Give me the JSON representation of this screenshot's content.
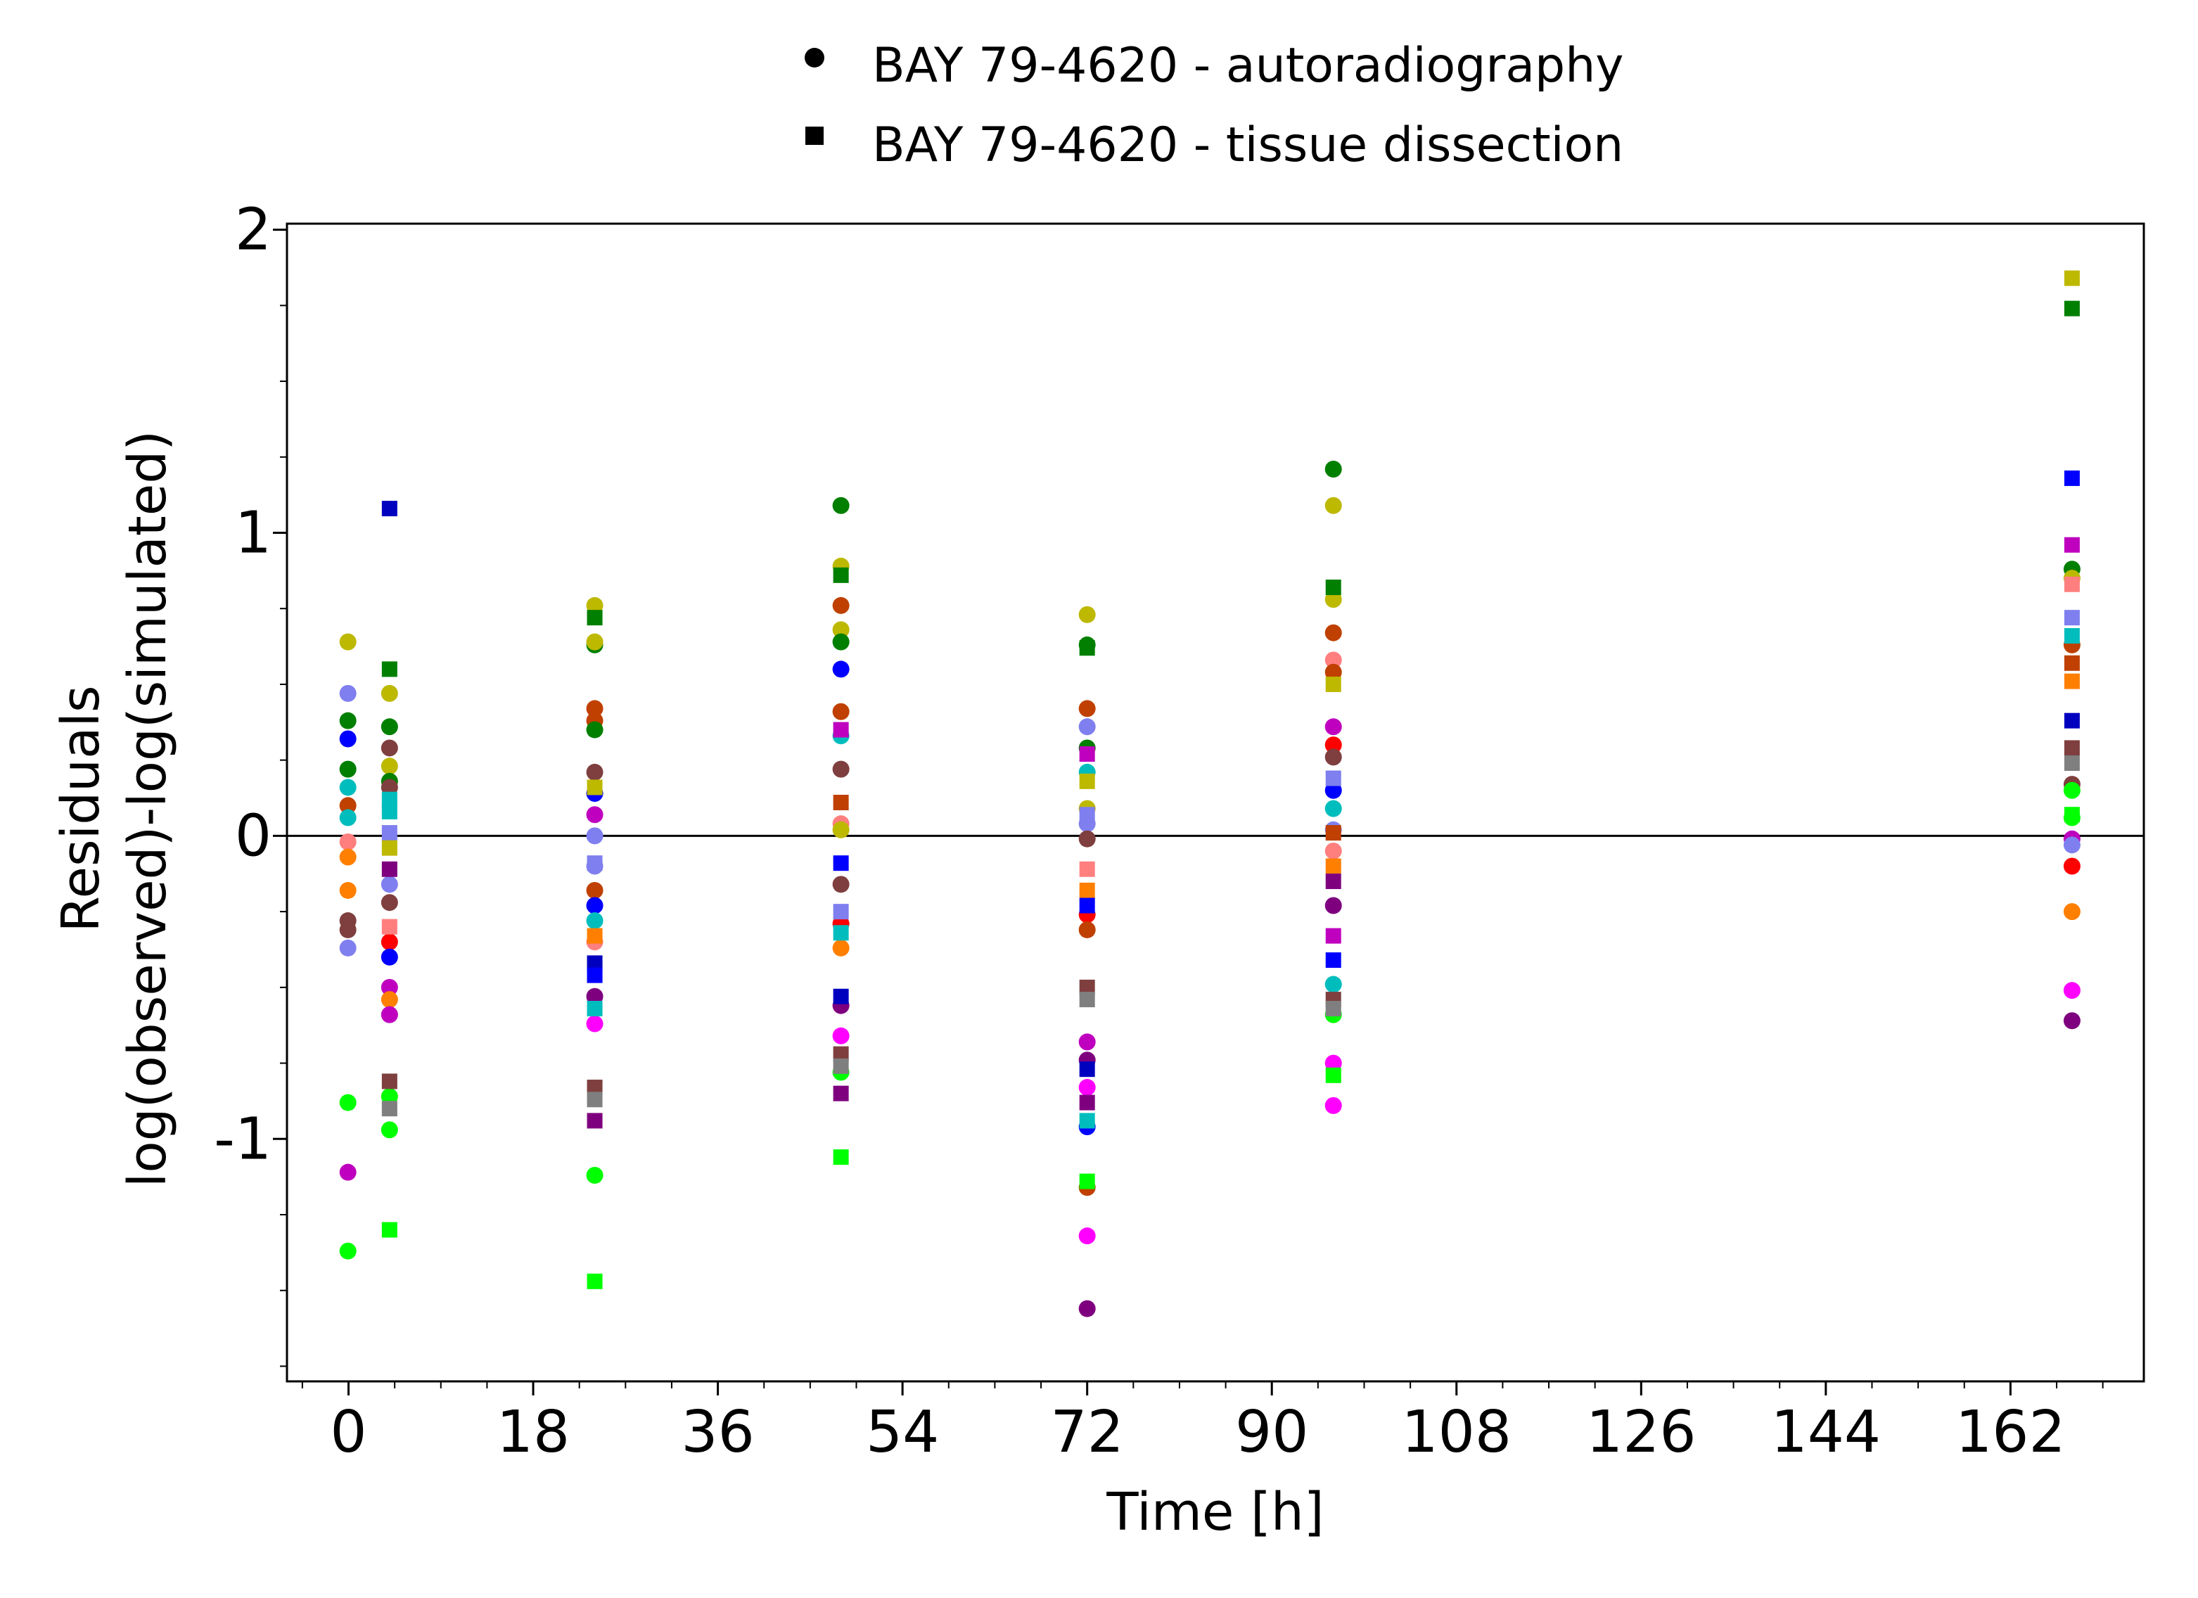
{
  "chart_data": {
    "type": "scatter",
    "title": "",
    "xlabel": "Time [h]",
    "ylabel_lines": [
      "Residuals",
      "log(observed)-log(simulated)"
    ],
    "xlim": [
      -6,
      175
    ],
    "ylim": [
      -1.8,
      2.02
    ],
    "x_ticks": [
      0,
      18,
      36,
      54,
      72,
      90,
      108,
      126,
      144,
      162
    ],
    "x_minor_step": 4.5,
    "y_ticks": [
      -1,
      0,
      1,
      2
    ],
    "y_minor_step": 0.25,
    "zero_line": 0,
    "grid": false,
    "legend_position": "top-center",
    "series": [
      {
        "name": "BAY 79-4620 - autoradiography",
        "marker": "circle",
        "points": [
          {
            "x": 2,
            "y": 0.64,
            "c": "#bdb800"
          },
          {
            "x": 2,
            "y": 0.47,
            "c": "#7f7fef"
          },
          {
            "x": 2,
            "y": 0.38,
            "c": "#007f00"
          },
          {
            "x": 2,
            "y": 0.32,
            "c": "#0000ff"
          },
          {
            "x": 2,
            "y": 0.22,
            "c": "#007f00"
          },
          {
            "x": 2,
            "y": 0.16,
            "c": "#00bdbd"
          },
          {
            "x": 2,
            "y": 0.1,
            "c": "#bf4000"
          },
          {
            "x": 2,
            "y": 0.06,
            "c": "#00bdbd"
          },
          {
            "x": 2,
            "y": -0.02,
            "c": "#ff7f7f"
          },
          {
            "x": 2,
            "y": -0.07,
            "c": "#ff7f00"
          },
          {
            "x": 2,
            "y": -0.18,
            "c": "#ff7f00"
          },
          {
            "x": 2,
            "y": -0.28,
            "c": "#7f3f3f"
          },
          {
            "x": 2,
            "y": -0.31,
            "c": "#7f3f3f"
          },
          {
            "x": 2,
            "y": -0.37,
            "c": "#7f7fef"
          },
          {
            "x": 2,
            "y": -0.88,
            "c": "#00ff00"
          },
          {
            "x": 2,
            "y": -1.11,
            "c": "#bf00bf"
          },
          {
            "x": 2,
            "y": -1.37,
            "c": "#00ff00"
          },
          {
            "x": 4,
            "y": 0.47,
            "c": "#bdb800"
          },
          {
            "x": 4,
            "y": 0.36,
            "c": "#007f00"
          },
          {
            "x": 4,
            "y": 0.29,
            "c": "#7f3f3f"
          },
          {
            "x": 4,
            "y": 0.23,
            "c": "#bdb800"
          },
          {
            "x": 4,
            "y": 0.18,
            "c": "#007f00"
          },
          {
            "x": 4,
            "y": 0.16,
            "c": "#7f3f3f"
          },
          {
            "x": 4,
            "y": -0.16,
            "c": "#7f7fef"
          },
          {
            "x": 4,
            "y": -0.22,
            "c": "#7f3f3f"
          },
          {
            "x": 4,
            "y": -0.35,
            "c": "#ff0000"
          },
          {
            "x": 4,
            "y": -0.4,
            "c": "#0000ff"
          },
          {
            "x": 4,
            "y": -0.5,
            "c": "#bf00bf"
          },
          {
            "x": 4,
            "y": -0.54,
            "c": "#ff7f00"
          },
          {
            "x": 4,
            "y": -0.59,
            "c": "#bf00bf"
          },
          {
            "x": 4,
            "y": -0.86,
            "c": "#00ff00"
          },
          {
            "x": 4,
            "y": -0.97,
            "c": "#00ff00"
          },
          {
            "x": 24,
            "y": 0.76,
            "c": "#bdb800"
          },
          {
            "x": 24,
            "y": 0.63,
            "c": "#007f00"
          },
          {
            "x": 24,
            "y": 0.64,
            "c": "#bdb800"
          },
          {
            "x": 24,
            "y": 0.42,
            "c": "#bf4000"
          },
          {
            "x": 24,
            "y": 0.38,
            "c": "#bf4000"
          },
          {
            "x": 24,
            "y": 0.35,
            "c": "#007f00"
          },
          {
            "x": 24,
            "y": 0.21,
            "c": "#7f3f3f"
          },
          {
            "x": 24,
            "y": 0.14,
            "c": "#0000ff"
          },
          {
            "x": 24,
            "y": 0.07,
            "c": "#bf00bf"
          },
          {
            "x": 24,
            "y": 0.0,
            "c": "#7f7fef"
          },
          {
            "x": 24,
            "y": -0.1,
            "c": "#7f7fef"
          },
          {
            "x": 24,
            "y": -0.18,
            "c": "#bf4000"
          },
          {
            "x": 24,
            "y": -0.23,
            "c": "#0000ff"
          },
          {
            "x": 24,
            "y": -0.28,
            "c": "#00bdbd"
          },
          {
            "x": 24,
            "y": -0.35,
            "c": "#ff7f7f"
          },
          {
            "x": 24,
            "y": -0.53,
            "c": "#7f007f"
          },
          {
            "x": 24,
            "y": -0.62,
            "c": "#ff00ff"
          },
          {
            "x": 24,
            "y": -1.12,
            "c": "#00ff00"
          },
          {
            "x": 48,
            "y": 1.09,
            "c": "#007f00"
          },
          {
            "x": 48,
            "y": 0.89,
            "c": "#bdb800"
          },
          {
            "x": 48,
            "y": 0.76,
            "c": "#bf4000"
          },
          {
            "x": 48,
            "y": 0.68,
            "c": "#bdb800"
          },
          {
            "x": 48,
            "y": 0.64,
            "c": "#007f00"
          },
          {
            "x": 48,
            "y": 0.55,
            "c": "#0000ff"
          },
          {
            "x": 48,
            "y": 0.41,
            "c": "#bf4000"
          },
          {
            "x": 48,
            "y": 0.33,
            "c": "#00bdbd"
          },
          {
            "x": 48,
            "y": 0.22,
            "c": "#7f3f3f"
          },
          {
            "x": 48,
            "y": 0.04,
            "c": "#ff7f7f"
          },
          {
            "x": 48,
            "y": 0.02,
            "c": "#bdb800"
          },
          {
            "x": 48,
            "y": -0.16,
            "c": "#7f3f3f"
          },
          {
            "x": 48,
            "y": -0.29,
            "c": "#ff0000"
          },
          {
            "x": 48,
            "y": -0.37,
            "c": "#ff7f00"
          },
          {
            "x": 48,
            "y": -0.56,
            "c": "#7f007f"
          },
          {
            "x": 48,
            "y": -0.66,
            "c": "#ff00ff"
          },
          {
            "x": 48,
            "y": -0.78,
            "c": "#00ff00"
          },
          {
            "x": 72,
            "y": 0.73,
            "c": "#bdb800"
          },
          {
            "x": 72,
            "y": 0.63,
            "c": "#007f00"
          },
          {
            "x": 72,
            "y": 0.42,
            "c": "#bf4000"
          },
          {
            "x": 72,
            "y": 0.36,
            "c": "#7f7fef"
          },
          {
            "x": 72,
            "y": 0.29,
            "c": "#007f00"
          },
          {
            "x": 72,
            "y": 0.21,
            "c": "#00bdbd"
          },
          {
            "x": 72,
            "y": 0.09,
            "c": "#bdb800"
          },
          {
            "x": 72,
            "y": 0.04,
            "c": "#7f7fef"
          },
          {
            "x": 72,
            "y": -0.01,
            "c": "#7f3f3f"
          },
          {
            "x": 72,
            "y": -0.26,
            "c": "#ff0000"
          },
          {
            "x": 72,
            "y": -0.31,
            "c": "#bf4000"
          },
          {
            "x": 72,
            "y": -0.68,
            "c": "#bf00bf"
          },
          {
            "x": 72,
            "y": -0.74,
            "c": "#7f007f"
          },
          {
            "x": 72,
            "y": -0.83,
            "c": "#ff00ff"
          },
          {
            "x": 72,
            "y": -0.96,
            "c": "#0000ff"
          },
          {
            "x": 72,
            "y": -1.16,
            "c": "#bf4000"
          },
          {
            "x": 72,
            "y": -1.32,
            "c": "#ff00ff"
          },
          {
            "x": 72,
            "y": -1.56,
            "c": "#7f007f"
          },
          {
            "x": 96,
            "y": 1.21,
            "c": "#007f00"
          },
          {
            "x": 96,
            "y": 1.09,
            "c": "#bdb800"
          },
          {
            "x": 96,
            "y": 0.78,
            "c": "#bdb800"
          },
          {
            "x": 96,
            "y": 0.67,
            "c": "#bf4000"
          },
          {
            "x": 96,
            "y": 0.58,
            "c": "#ff7f7f"
          },
          {
            "x": 96,
            "y": 0.54,
            "c": "#bf4000"
          },
          {
            "x": 96,
            "y": 0.36,
            "c": "#bf00bf"
          },
          {
            "x": 96,
            "y": 0.3,
            "c": "#ff0000"
          },
          {
            "x": 96,
            "y": 0.26,
            "c": "#7f3f3f"
          },
          {
            "x": 96,
            "y": 0.15,
            "c": "#0000ff"
          },
          {
            "x": 96,
            "y": 0.09,
            "c": "#00bdbd"
          },
          {
            "x": 96,
            "y": 0.02,
            "c": "#7f7fef"
          },
          {
            "x": 96,
            "y": -0.05,
            "c": "#ff7f7f"
          },
          {
            "x": 96,
            "y": -0.23,
            "c": "#7f007f"
          },
          {
            "x": 96,
            "y": -0.49,
            "c": "#00bdbd"
          },
          {
            "x": 96,
            "y": -0.59,
            "c": "#00ff00"
          },
          {
            "x": 96,
            "y": -0.75,
            "c": "#ff00ff"
          },
          {
            "x": 96,
            "y": -0.89,
            "c": "#ff00ff"
          },
          {
            "x": 168,
            "y": 0.88,
            "c": "#007f00"
          },
          {
            "x": 168,
            "y": 0.85,
            "c": "#bdb800"
          },
          {
            "x": 168,
            "y": 0.63,
            "c": "#bf4000"
          },
          {
            "x": 168,
            "y": 0.17,
            "c": "#7f3f3f"
          },
          {
            "x": 168,
            "y": 0.15,
            "c": "#00ff00"
          },
          {
            "x": 168,
            "y": 0.06,
            "c": "#00ff00"
          },
          {
            "x": 168,
            "y": -0.01,
            "c": "#bf00bf"
          },
          {
            "x": 168,
            "y": -0.03,
            "c": "#7f7fef"
          },
          {
            "x": 168,
            "y": -0.1,
            "c": "#ff0000"
          },
          {
            "x": 168,
            "y": -0.25,
            "c": "#ff7f00"
          },
          {
            "x": 168,
            "y": -0.51,
            "c": "#ff00ff"
          },
          {
            "x": 168,
            "y": -0.61,
            "c": "#7f007f"
          }
        ]
      },
      {
        "name": "BAY 79-4620 - tissue dissection",
        "marker": "square",
        "points": [
          {
            "x": 4,
            "y": 1.08,
            "c": "#0000bf"
          },
          {
            "x": 4,
            "y": 0.55,
            "c": "#007f00"
          },
          {
            "x": 4,
            "y": 0.12,
            "c": "#00bdbd"
          },
          {
            "x": 4,
            "y": 0.08,
            "c": "#00bdbd"
          },
          {
            "x": 4,
            "y": 0.01,
            "c": "#7f7fef"
          },
          {
            "x": 4,
            "y": -0.04,
            "c": "#bdb800"
          },
          {
            "x": 4,
            "y": -0.11,
            "c": "#7f007f"
          },
          {
            "x": 4,
            "y": -0.3,
            "c": "#ff7f7f"
          },
          {
            "x": 4,
            "y": -0.81,
            "c": "#7f3f3f"
          },
          {
            "x": 4,
            "y": -0.9,
            "c": "#7f7f7f"
          },
          {
            "x": 4,
            "y": -1.3,
            "c": "#00ff00"
          },
          {
            "x": 24,
            "y": 0.72,
            "c": "#007f00"
          },
          {
            "x": 24,
            "y": 0.16,
            "c": "#bdb800"
          },
          {
            "x": 24,
            "y": -0.09,
            "c": "#7f7fef"
          },
          {
            "x": 24,
            "y": -0.33,
            "c": "#ff7f00"
          },
          {
            "x": 24,
            "y": -0.42,
            "c": "#0000bf"
          },
          {
            "x": 24,
            "y": -0.46,
            "c": "#0000ff"
          },
          {
            "x": 24,
            "y": -0.57,
            "c": "#00bdbd"
          },
          {
            "x": 24,
            "y": -0.83,
            "c": "#7f3f3f"
          },
          {
            "x": 24,
            "y": -0.87,
            "c": "#7f7f7f"
          },
          {
            "x": 24,
            "y": -0.94,
            "c": "#7f007f"
          },
          {
            "x": 24,
            "y": -1.47,
            "c": "#00ff00"
          },
          {
            "x": 48,
            "y": 0.86,
            "c": "#007f00"
          },
          {
            "x": 48,
            "y": 0.35,
            "c": "#bf00bf"
          },
          {
            "x": 48,
            "y": 0.11,
            "c": "#bf4000"
          },
          {
            "x": 48,
            "y": -0.09,
            "c": "#0000ff"
          },
          {
            "x": 48,
            "y": -0.25,
            "c": "#7f7fef"
          },
          {
            "x": 48,
            "y": -0.32,
            "c": "#00bdbd"
          },
          {
            "x": 48,
            "y": -0.53,
            "c": "#0000bf"
          },
          {
            "x": 48,
            "y": -0.72,
            "c": "#7f3f3f"
          },
          {
            "x": 48,
            "y": -0.76,
            "c": "#7f7f7f"
          },
          {
            "x": 48,
            "y": -0.85,
            "c": "#7f007f"
          },
          {
            "x": 48,
            "y": -1.06,
            "c": "#00ff00"
          },
          {
            "x": 72,
            "y": 0.62,
            "c": "#007f00"
          },
          {
            "x": 72,
            "y": 0.27,
            "c": "#bf00bf"
          },
          {
            "x": 72,
            "y": 0.18,
            "c": "#bdb800"
          },
          {
            "x": 72,
            "y": 0.07,
            "c": "#7f7fef"
          },
          {
            "x": 72,
            "y": -0.11,
            "c": "#ff7f7f"
          },
          {
            "x": 72,
            "y": -0.18,
            "c": "#ff7f00"
          },
          {
            "x": 72,
            "y": -0.23,
            "c": "#0000ff"
          },
          {
            "x": 72,
            "y": -0.5,
            "c": "#7f3f3f"
          },
          {
            "x": 72,
            "y": -0.54,
            "c": "#7f7f7f"
          },
          {
            "x": 72,
            "y": -0.77,
            "c": "#0000bf"
          },
          {
            "x": 72,
            "y": -0.88,
            "c": "#7f007f"
          },
          {
            "x": 72,
            "y": -0.94,
            "c": "#00bdbd"
          },
          {
            "x": 72,
            "y": -1.14,
            "c": "#00ff00"
          },
          {
            "x": 96,
            "y": 0.82,
            "c": "#007f00"
          },
          {
            "x": 96,
            "y": 0.5,
            "c": "#bdb800"
          },
          {
            "x": 96,
            "y": 0.19,
            "c": "#7f7fef"
          },
          {
            "x": 96,
            "y": 0.01,
            "c": "#bf4000"
          },
          {
            "x": 96,
            "y": -0.1,
            "c": "#ff7f00"
          },
          {
            "x": 96,
            "y": -0.15,
            "c": "#7f007f"
          },
          {
            "x": 96,
            "y": -0.33,
            "c": "#bf00bf"
          },
          {
            "x": 96,
            "y": -0.41,
            "c": "#0000ff"
          },
          {
            "x": 96,
            "y": -0.54,
            "c": "#7f3f3f"
          },
          {
            "x": 96,
            "y": -0.57,
            "c": "#7f7f7f"
          },
          {
            "x": 96,
            "y": -0.79,
            "c": "#00ff00"
          },
          {
            "x": 168,
            "y": 1.84,
            "c": "#bdb800"
          },
          {
            "x": 168,
            "y": 1.74,
            "c": "#007f00"
          },
          {
            "x": 168,
            "y": 1.18,
            "c": "#0000ff"
          },
          {
            "x": 168,
            "y": 0.96,
            "c": "#bf00bf"
          },
          {
            "x": 168,
            "y": 0.83,
            "c": "#ff7f7f"
          },
          {
            "x": 168,
            "y": 0.72,
            "c": "#7f7fef"
          },
          {
            "x": 168,
            "y": 0.66,
            "c": "#00bdbd"
          },
          {
            "x": 168,
            "y": 0.57,
            "c": "#bf4000"
          },
          {
            "x": 168,
            "y": 0.51,
            "c": "#ff7f00"
          },
          {
            "x": 168,
            "y": 0.38,
            "c": "#0000bf"
          },
          {
            "x": 168,
            "y": 0.29,
            "c": "#7f3f3f"
          },
          {
            "x": 168,
            "y": 0.24,
            "c": "#7f7f7f"
          },
          {
            "x": 168,
            "y": 0.07,
            "c": "#00ff00"
          }
        ]
      }
    ]
  }
}
